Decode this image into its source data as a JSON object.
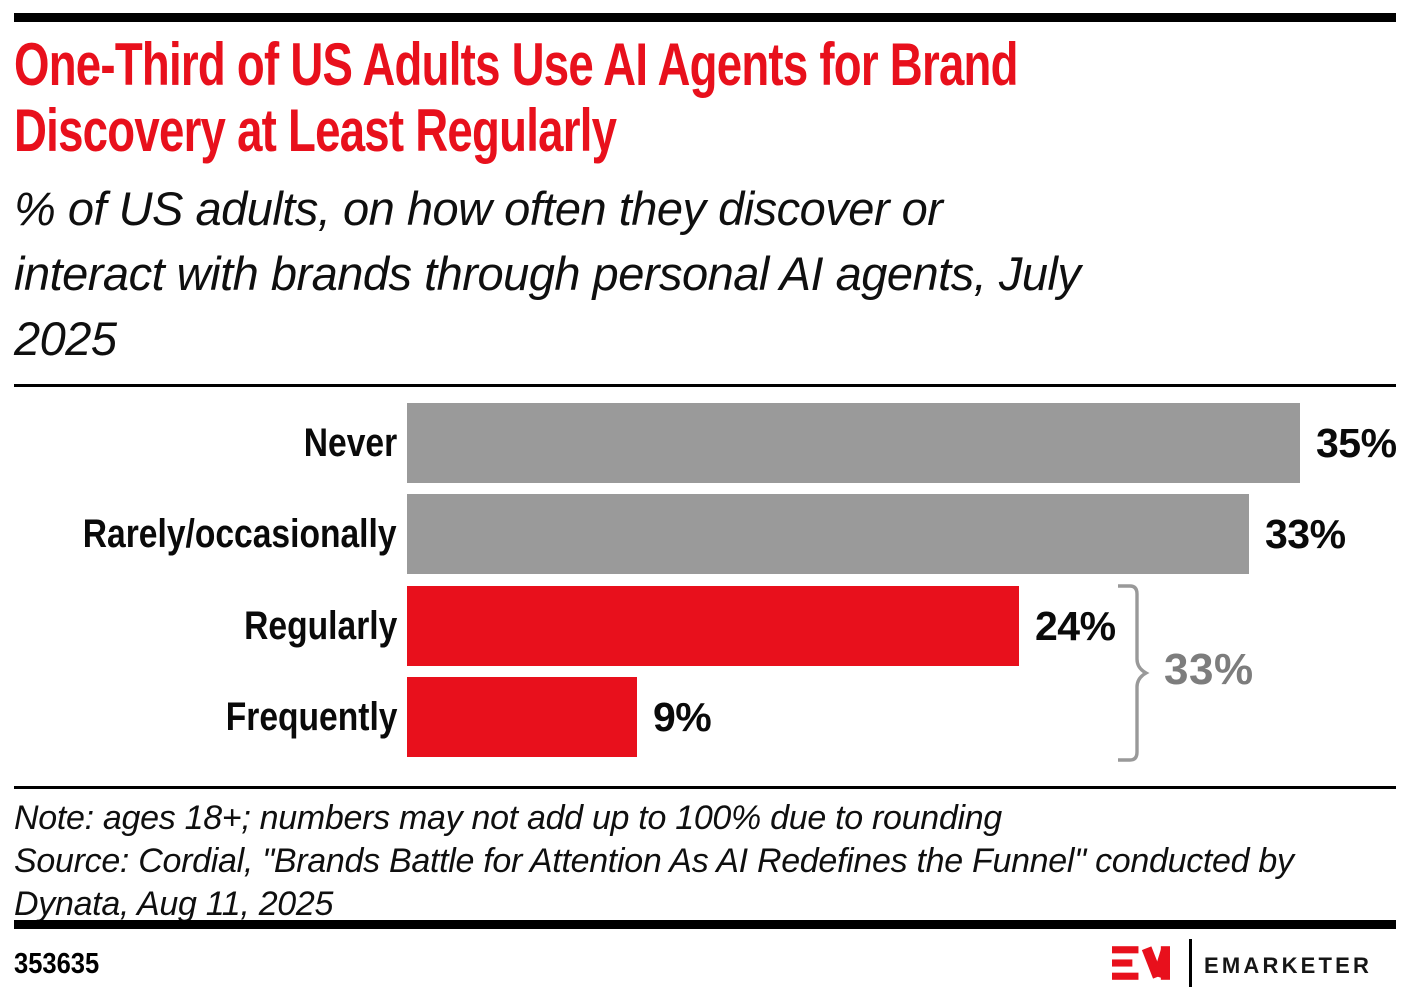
{
  "header": {
    "title_lines": [
      "One-Third of US Adults Use AI Agents for Brand",
      "Discovery at Least Regularly"
    ],
    "subtitle_lines": [
      "% of US adults, on how often they discover or",
      "interact with brands through personal AI agents, July",
      "2025"
    ]
  },
  "chart_data": {
    "type": "bar",
    "orientation": "horizontal",
    "title": "One-Third of US Adults Use AI Agents for Brand Discovery at Least Regularly",
    "subtitle": "% of US adults, on how often they discover or interact with brands through personal AI agents, July 2025",
    "categories": [
      "Never",
      "Rarely/occasionally",
      "Regularly",
      "Frequently"
    ],
    "values": [
      35,
      33,
      24,
      9
    ],
    "value_labels": [
      "35%",
      "33%",
      "24%",
      "9%"
    ],
    "bar_colors": [
      "gray",
      "gray",
      "red",
      "red"
    ],
    "xlim": [
      0,
      35
    ],
    "grid": "off",
    "legend": "none",
    "annotation": {
      "label": "33%",
      "spans": [
        "Regularly",
        "Frequently"
      ],
      "shape": "curly-brace-right"
    }
  },
  "footnote": {
    "note_lines": [
      "Note: ages 18+; numbers may not add up to 100% due to rounding",
      "Source: Cordial, \"Brands Battle for Attention As AI Redefines the Funnel\" conducted by",
      "Dynata, Aug 11, 2025"
    ]
  },
  "footer": {
    "chart_id": "353635",
    "logo_monogram": "EM",
    "logo_text": "EMARKETER"
  },
  "colors": {
    "accent_red": "#e8101c",
    "bar_gray": "#9a9a9a",
    "bar_red": "#e8101c",
    "brace_gray": "#999999",
    "annotation_gray": "#7d7d7d",
    "rule_black": "#000000"
  }
}
